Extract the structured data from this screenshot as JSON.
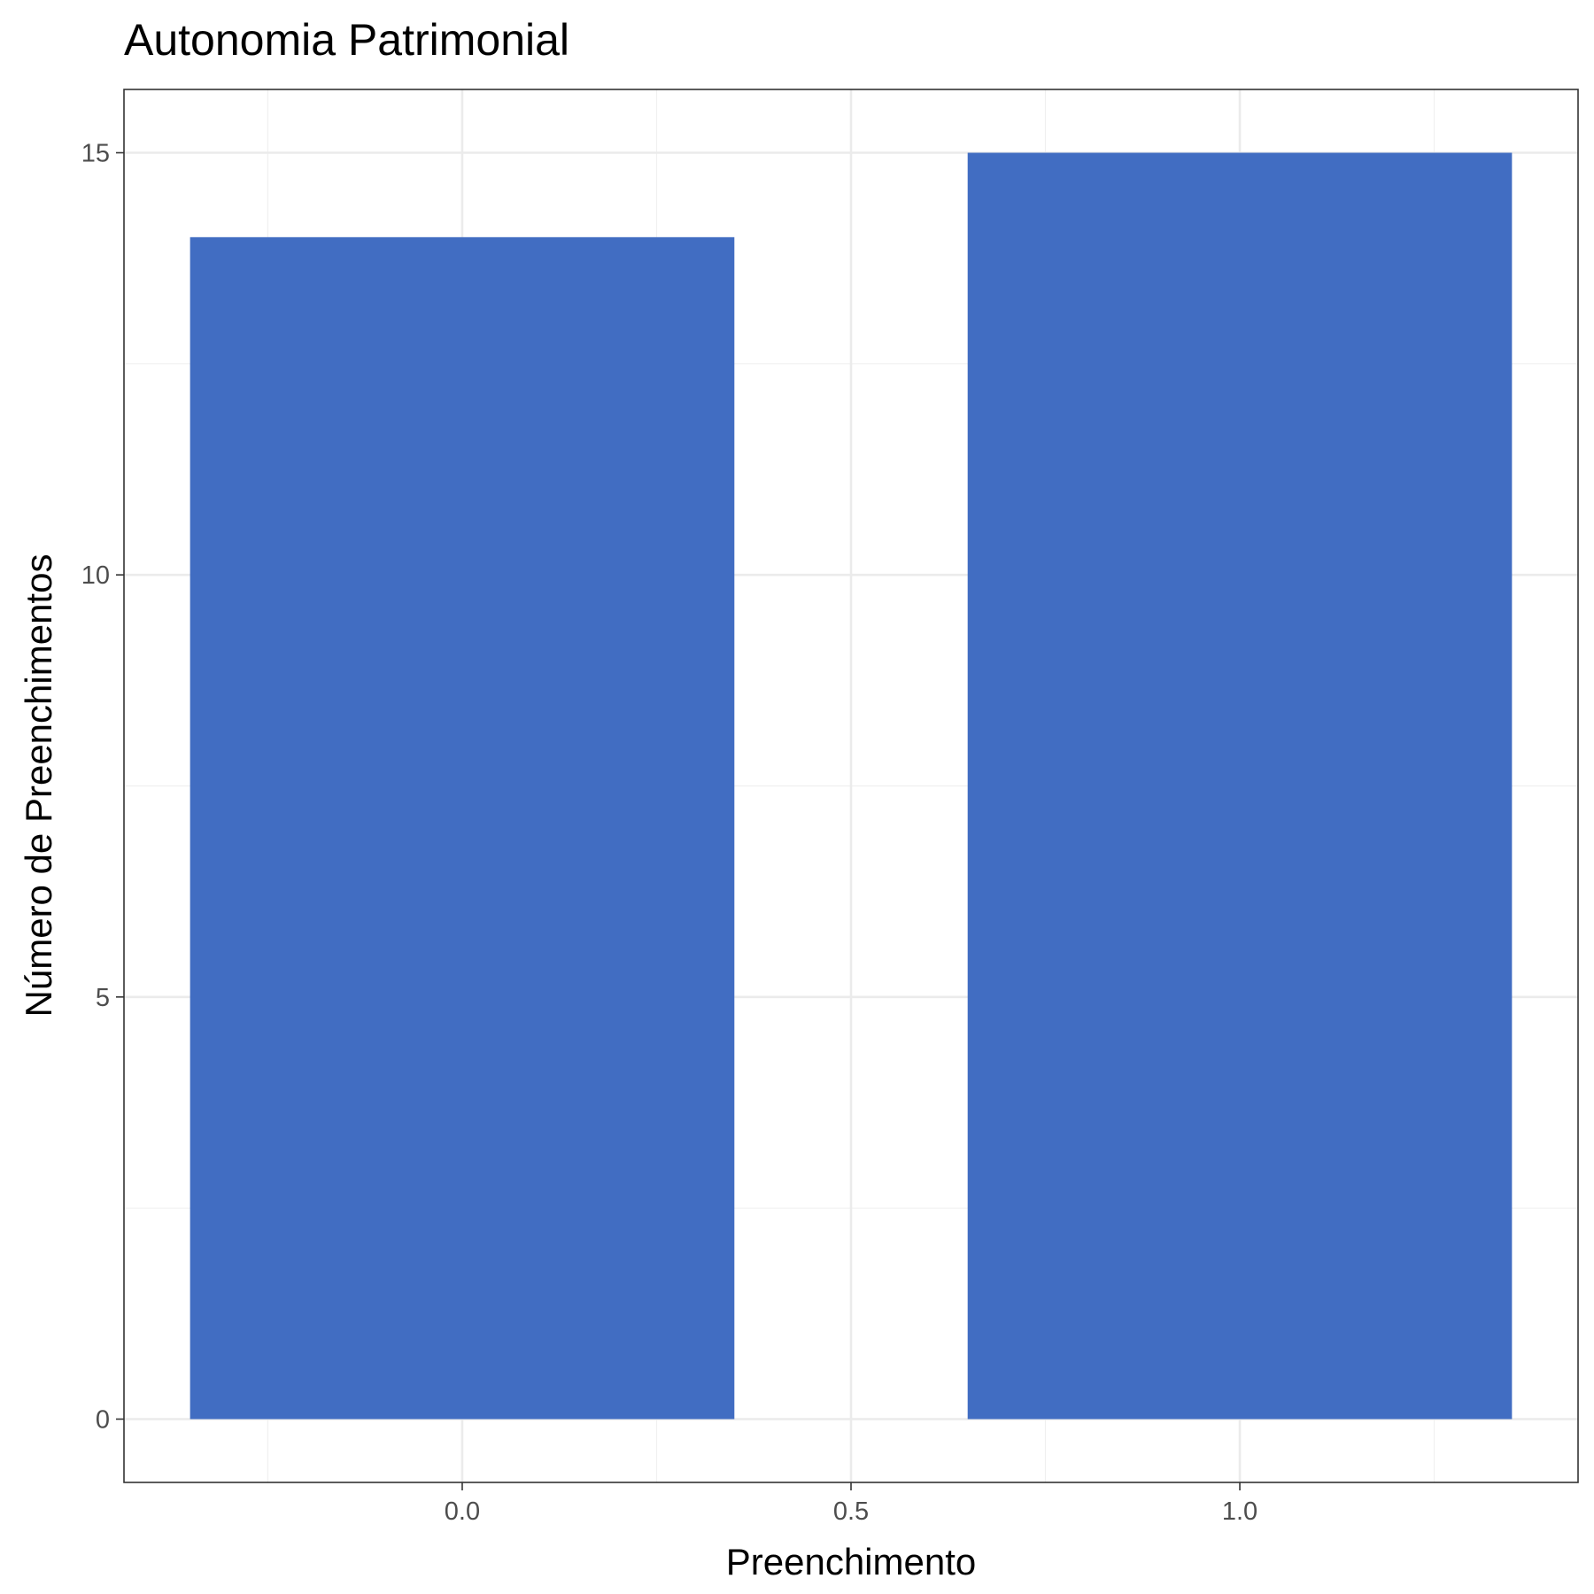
{
  "chart_data": {
    "type": "bar",
    "title": "Autonomia Patrimonial",
    "xlabel": "Preenchimento",
    "ylabel": "Número de Preenchimentos",
    "x": [
      0,
      1
    ],
    "values": [
      14,
      15
    ],
    "bar_width": 0.7,
    "xlim": [
      -0.435,
      1.435
    ],
    "ylim": [
      -0.75,
      15.75
    ],
    "xticks": [
      0.0,
      0.5,
      1.0
    ],
    "xtick_labels": [
      "0.0",
      "0.5",
      "1.0"
    ],
    "yticks": [
      0,
      5,
      10,
      15
    ],
    "ytick_labels": [
      "0",
      "5",
      "10",
      "15"
    ],
    "bar_color": "#416DC2",
    "grid": true,
    "legend": "none"
  }
}
